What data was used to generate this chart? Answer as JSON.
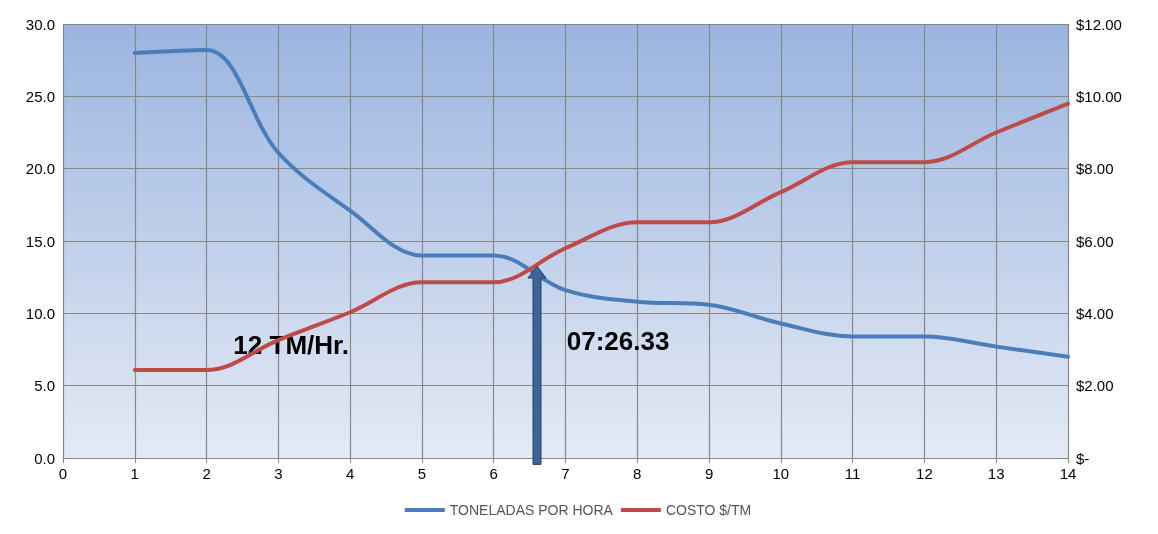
{
  "chart_data": {
    "type": "line",
    "x": [
      1,
      2,
      3,
      4,
      5,
      6,
      7,
      8,
      9,
      10,
      11,
      12,
      13,
      14
    ],
    "series": [
      {
        "name": "TONELADAS POR HORA",
        "color": "#4a7ebb",
        "values": [
          28.0,
          28.2,
          21.1,
          17.1,
          14.0,
          14.0,
          11.6,
          10.8,
          10.6,
          9.3,
          8.4,
          8.4,
          7.7,
          7.0
        ]
      },
      {
        "name": "COSTO $/TM",
        "color": "#be4b48",
        "axis": "y2",
        "values": [
          2.43,
          2.43,
          3.26,
          4.03,
          4.86,
          4.86,
          5.8,
          6.52,
          6.52,
          7.35,
          8.18,
          8.18,
          9.0,
          9.8
        ]
      }
    ],
    "xlim": [
      0,
      14
    ],
    "xticks": [
      0,
      1,
      2,
      3,
      4,
      5,
      6,
      7,
      8,
      9,
      10,
      11,
      12,
      13,
      14
    ],
    "ylim": [
      0,
      30
    ],
    "yticks": [
      {
        "value": 0,
        "label": "0.0"
      },
      {
        "value": 5,
        "label": "5.0"
      },
      {
        "value": 10,
        "label": "10.0"
      },
      {
        "value": 15,
        "label": "15.0"
      },
      {
        "value": 20,
        "label": "20.0"
      },
      {
        "value": 25,
        "label": "25.0"
      },
      {
        "value": 30,
        "label": "30.0"
      }
    ],
    "y2lim": [
      0,
      12
    ],
    "y2ticks": [
      {
        "value": 0,
        "label": "$-"
      },
      {
        "value": 2,
        "label": "$2.00"
      },
      {
        "value": 4,
        "label": "$4.00"
      },
      {
        "value": 6,
        "label": "$6.00"
      },
      {
        "value": 8,
        "label": "$8.00"
      },
      {
        "value": 10,
        "label": "$10.00"
      },
      {
        "value": 12,
        "label": "$12.00"
      }
    ],
    "annotations": [
      {
        "text": "07:26.33",
        "x": 6.6,
        "y": 13.3
      },
      {
        "text": "12 TM/Hr.",
        "x": 3,
        "y": 8
      }
    ],
    "grid": true,
    "legend": "bottom",
    "marker": "none",
    "line_style": "solid"
  }
}
